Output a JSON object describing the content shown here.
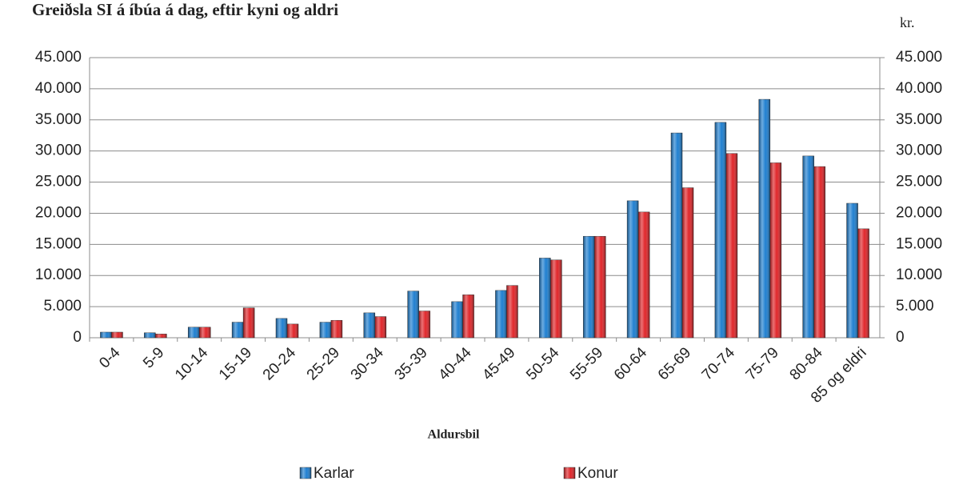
{
  "chart_data": {
    "type": "bar",
    "title": "Greiðsla SI á íbúa á dag, eftir kyni og aldri",
    "unit_label": "kr.",
    "x_label": "Aldursbil",
    "categories": [
      "0-4",
      "5-9",
      "10-14",
      "15-19",
      "20-24",
      "25-29",
      "30-34",
      "35-39",
      "40-44",
      "45-49",
      "50-54",
      "55-59",
      "60-64",
      "65-69",
      "70-74",
      "75-79",
      "80-84",
      "85 og eldri"
    ],
    "series": [
      {
        "name": "Karlar",
        "color": "#1f7fd0",
        "values": [
          900,
          800,
          1700,
          2500,
          3100,
          2500,
          4000,
          7500,
          5800,
          7600,
          12800,
          16300,
          22000,
          32900,
          34600,
          38300,
          29200,
          21600
        ]
      },
      {
        "name": "Konur",
        "color": "#e0262a",
        "values": [
          900,
          600,
          1700,
          4800,
          2200,
          2800,
          3400,
          4300,
          6900,
          8400,
          12500,
          16300,
          20200,
          24100,
          29600,
          28100,
          27500,
          17500
        ]
      }
    ],
    "ylim": [
      0,
      45000
    ],
    "yticks": [
      0,
      {
        "value": 5000,
        "label": "5.000"
      },
      {
        "value": 10000,
        "label": "10.000"
      },
      {
        "value": 15000,
        "label": "15.000"
      },
      {
        "value": 20000,
        "label": "20.000"
      },
      {
        "value": 25000,
        "label": "25.000"
      },
      {
        "value": 30000,
        "label": "30.000"
      },
      {
        "value": 35000,
        "label": "35.000"
      },
      {
        "value": 40000,
        "label": "40.000"
      },
      {
        "value": 45000,
        "label": "45.000"
      }
    ],
    "y2lim": [
      0,
      45000
    ],
    "y2ticks": [
      0,
      {
        "value": 5000,
        "label": "5.000"
      },
      {
        "value": 10000,
        "label": "10.000"
      },
      {
        "value": 15000,
        "label": "15.000"
      },
      {
        "value": 20000,
        "label": "20.000"
      },
      {
        "value": 25000,
        "label": "25.000"
      },
      {
        "value": 30000,
        "label": "30.000"
      },
      {
        "value": 35000,
        "label": "35.000"
      },
      {
        "value": 40000,
        "label": "40.000"
      },
      {
        "value": 45000,
        "label": "45.000"
      }
    ],
    "grid": true,
    "legend": "bottom"
  }
}
